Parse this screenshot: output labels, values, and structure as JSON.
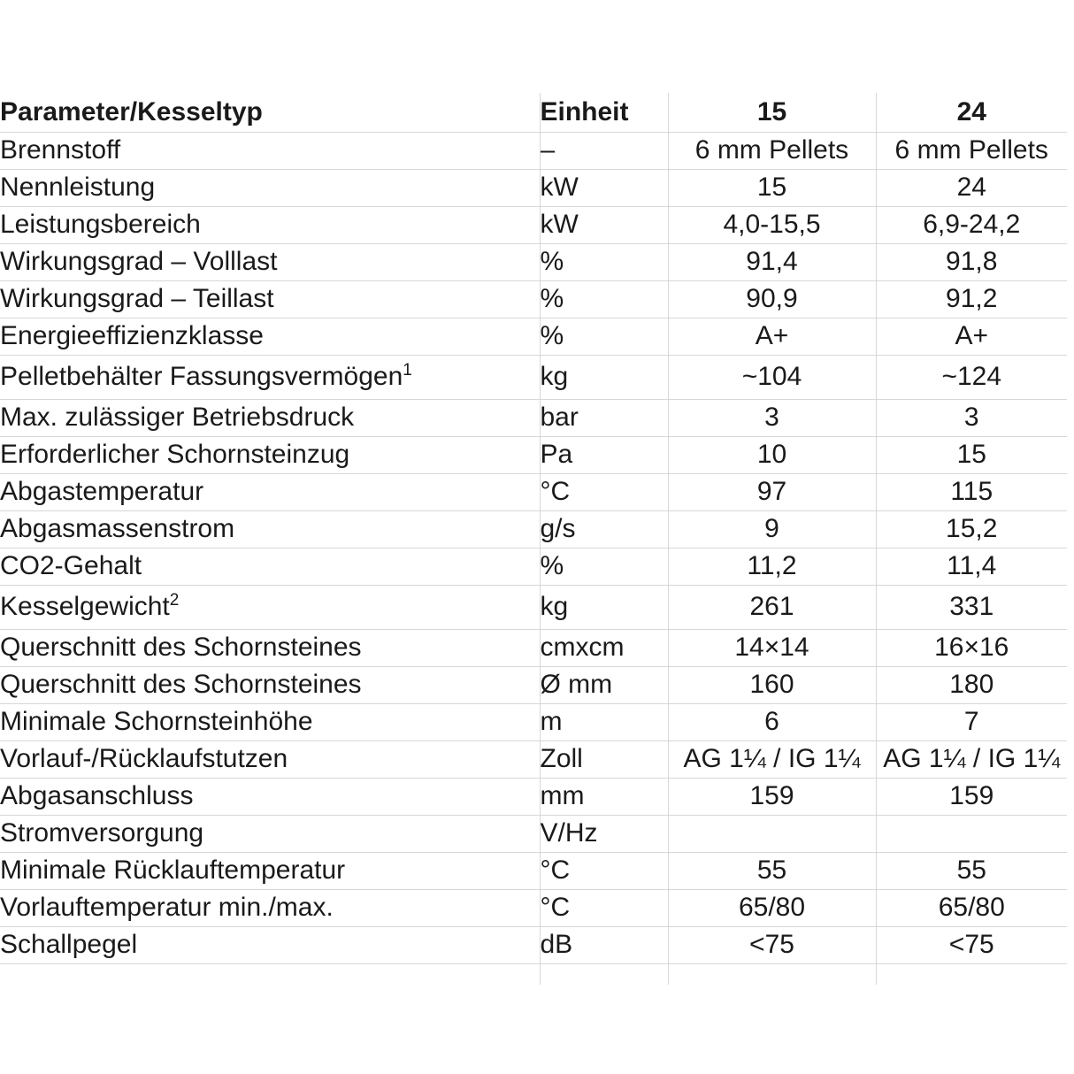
{
  "page": {
    "background_color": "#ffffff",
    "text_color": "#1a1a1a",
    "border_color": "#d7d7d7"
  },
  "table": {
    "columns": [
      "Parameter/Kesseltyp",
      "Einheit",
      "15",
      "24"
    ],
    "rows": [
      {
        "label": "Brennstoff",
        "unit": "–",
        "v15": "6 mm Pellets",
        "v24": "6 mm Pellets"
      },
      {
        "label": "Nennleistung",
        "unit": "kW",
        "v15": "15",
        "v24": "24"
      },
      {
        "label": "Leistungsbereich",
        "unit": "kW",
        "v15": "4,0-15,5",
        "v24": "6,9-24,2"
      },
      {
        "label": "Wirkungsgrad – Volllast",
        "unit": "%",
        "v15": "91,4",
        "v24": "91,8"
      },
      {
        "label": "Wirkungsgrad – Teillast",
        "unit": "%",
        "v15": "90,9",
        "v24": "91,2"
      },
      {
        "label": "Energieeffizienzklasse",
        "unit": "%",
        "v15": "A+",
        "v24": "A+"
      },
      {
        "label": "Pelletbehälter Fassungsvermögen",
        "sup": "1",
        "unit": "kg",
        "v15": "~104",
        "v24": "~124"
      },
      {
        "label": "Max. zulässiger Betriebsdruck",
        "unit": "bar",
        "v15": "3",
        "v24": "3"
      },
      {
        "label": "Erforderlicher Schornsteinzug",
        "unit": "Pa",
        "v15": "10",
        "v24": "15"
      },
      {
        "label": "Abgastemperatur",
        "unit": "°C",
        "v15": "97",
        "v24": "115"
      },
      {
        "label": "Abgasmassenstrom",
        "unit": "g/s",
        "v15": "9",
        "v24": "15,2"
      },
      {
        "label": "CO2-Gehalt",
        "unit": "%",
        "v15": "11,2",
        "v24": "11,4"
      },
      {
        "label": "Kesselgewicht",
        "sup": "2",
        "unit": "kg",
        "v15": "261",
        "v24": "331"
      },
      {
        "label": "Querschnitt des Schornsteines",
        "unit": "cmxcm",
        "v15": "14×14",
        "v24": "16×16"
      },
      {
        "label": "Querschnitt des Schornsteines",
        "unit": "Ø mm",
        "v15": "160",
        "v24": "180"
      },
      {
        "label": "Minimale Schornsteinhöhe",
        "unit": "m",
        "v15": "6",
        "v24": "7"
      },
      {
        "label": "Vorlauf-/Rücklaufstutzen",
        "unit": "Zoll",
        "v15": "AG 1¼ / IG 1¼",
        "v24": "AG 1¼ / IG 1¼"
      },
      {
        "label": "Abgasanschluss",
        "unit": "mm",
        "v15": "159",
        "v24": "159"
      },
      {
        "label": "Stromversorgung",
        "unit": "V/Hz",
        "v15": "",
        "v24": ""
      },
      {
        "label": "Minimale Rücklauftemperatur",
        "unit": "°C",
        "v15": "55",
        "v24": "55"
      },
      {
        "label": "Vorlauftemperatur min./max.",
        "unit": "°C",
        "v15": "65/80",
        "v24": "65/80"
      },
      {
        "label": "Schallpegel",
        "unit": "dB",
        "v15": "<75",
        "v24": "<75"
      },
      {
        "label": "",
        "unit": "",
        "v15": "",
        "v24": ""
      }
    ]
  }
}
